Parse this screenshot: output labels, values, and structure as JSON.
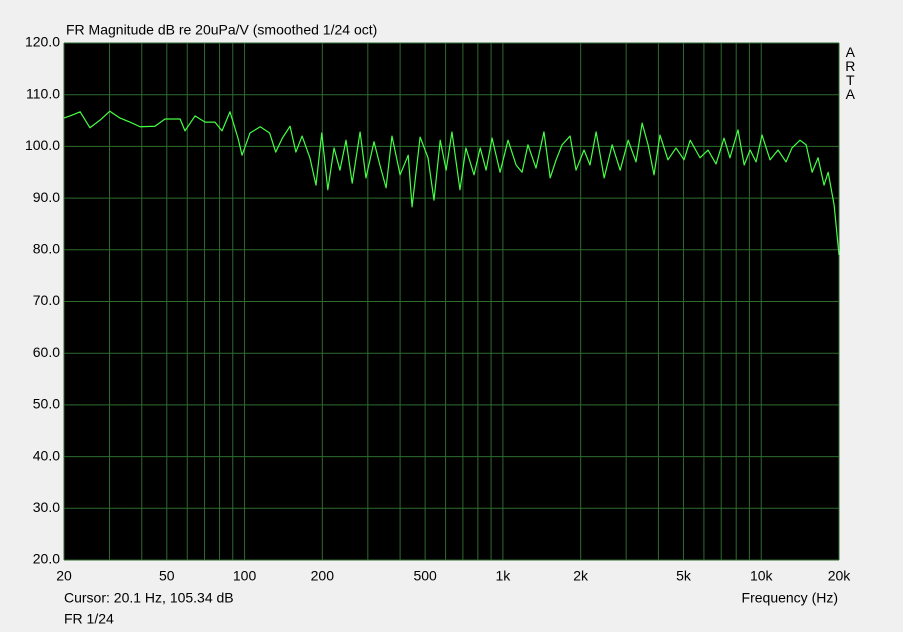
{
  "chart_data": {
    "type": "line",
    "title": "FR Magnitude dB re 20uPa/V (smoothed 1/24 oct)",
    "watermark": "ARTA",
    "cursor": "Cursor: 20.1 Hz, 105.34 dB",
    "x_label": "Frequency (Hz)",
    "x_scale": "log",
    "grid": true,
    "xlim": [
      20,
      20000
    ],
    "ylim": [
      20,
      120
    ],
    "xticks": [
      20,
      50,
      100,
      200,
      500,
      {
        "value": 1000,
        "label": "1k"
      },
      {
        "value": 2000,
        "label": "2k"
      },
      {
        "value": 5000,
        "label": "5k"
      },
      {
        "value": 10000,
        "label": "10k"
      },
      {
        "value": 20000,
        "label": "20k"
      }
    ],
    "xminor": [
      30,
      40,
      60,
      70,
      80,
      90,
      300,
      400,
      600,
      700,
      800,
      900,
      3000,
      4000,
      6000,
      7000,
      8000,
      9000
    ],
    "yticks": [
      {
        "value": 20,
        "label": "20.0"
      },
      {
        "value": 30,
        "label": "30.0"
      },
      {
        "value": 40,
        "label": "40.0"
      },
      {
        "value": 50,
        "label": "50.0"
      },
      {
        "value": 60,
        "label": "60.0"
      },
      {
        "value": 70,
        "label": "70.0"
      },
      {
        "value": 80,
        "label": "80.0"
      },
      {
        "value": 90,
        "label": "90.0"
      },
      {
        "value": 100,
        "label": "100.0"
      },
      {
        "value": 110,
        "label": "110.0"
      },
      {
        "value": 120,
        "label": "120.0"
      }
    ],
    "x": [
      20,
      21.1,
      23.1,
      25.2,
      27.6,
      30.1,
      32.9,
      36.0,
      39.4,
      45.0,
      49.2,
      56.3,
      58.8,
      64.3,
      70.3,
      76.8,
      81.8,
      87.8,
      94.3,
      97.8,
      105,
      115,
      125,
      132,
      140,
      150,
      158,
      167,
      179,
      189,
      199,
      210,
      222,
      234,
      247,
      261,
      280,
      295,
      317,
      334,
      353,
      372,
      400,
      430,
      445,
      478,
      513,
      541,
      572,
      603,
      635,
      682,
      719,
      773,
      817,
      861,
      908,
      975,
      1047,
      1125,
      1186,
      1250,
      1343,
      1442,
      1524,
      1607,
      1694,
      1820,
      1919,
      2061,
      2173,
      2296,
      2466,
      2648,
      2844,
      3055,
      3275,
      3459,
      3648,
      3846,
      4055,
      4355,
      4677,
      5024,
      5309,
      5794,
      6223,
      6683,
      7178,
      7568,
      8128,
      8590,
      9057,
      9550,
      10070,
      10816,
      11616,
      12474,
      13155,
      14127,
      14930,
      15740,
      16596,
      17500,
      18156,
      19144,
      20000
    ],
    "series": [
      {
        "name": "FR 1/24",
        "color": "#44ff44",
        "values": [
          105.5,
          105.9,
          106.7,
          103.6,
          105.1,
          106.8,
          105.5,
          104.7,
          103.8,
          103.9,
          105.3,
          105.3,
          103,
          105.9,
          104.7,
          104.7,
          103,
          106.7,
          101.6,
          98.3,
          102.6,
          103.8,
          102.6,
          98.9,
          101.6,
          103.9,
          98.9,
          102,
          97.8,
          92.5,
          102.6,
          91.6,
          99.7,
          95.4,
          101.2,
          92.9,
          102.8,
          93.9,
          100.9,
          96.4,
          92,
          102,
          94.5,
          98.3,
          88.3,
          101.8,
          97.8,
          89.6,
          101.2,
          95.4,
          102.8,
          91.6,
          99.7,
          94.5,
          99.7,
          95.4,
          101.6,
          95,
          101.2,
          96.4,
          95,
          100.3,
          95.8,
          102.8,
          93.9,
          97.4,
          100.3,
          102,
          95.4,
          99.3,
          96.4,
          102.8,
          93.9,
          100.3,
          95.4,
          101.2,
          97,
          104.5,
          100.3,
          94.5,
          102.2,
          97.4,
          99.7,
          97.4,
          101.2,
          97.8,
          99.3,
          96.6,
          101.6,
          97.8,
          103.2,
          96.4,
          99.3,
          97,
          102.2,
          97.4,
          99.3,
          97,
          99.7,
          101.2,
          100.3,
          95,
          97.8,
          92.5,
          95,
          88.7,
          79
        ]
      }
    ]
  }
}
